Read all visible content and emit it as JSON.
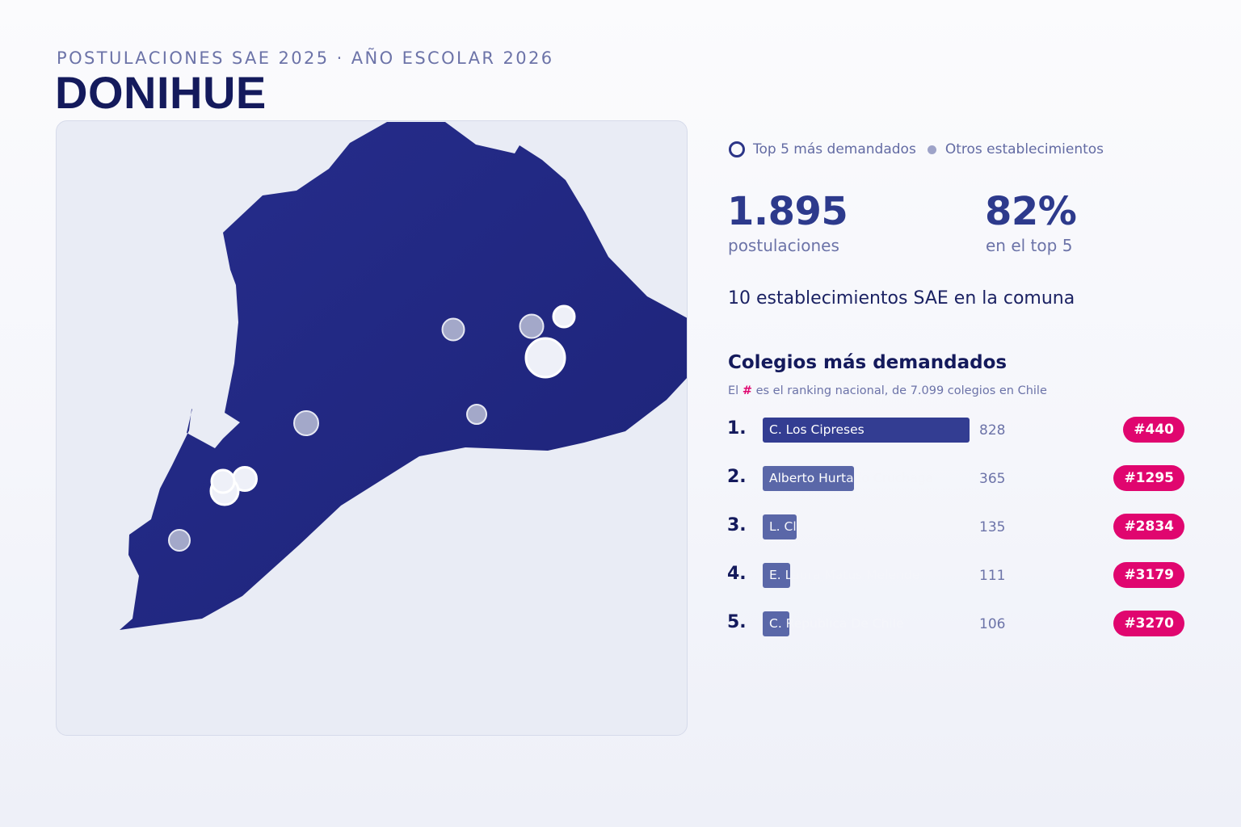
{
  "header": {
    "subtitle": "POSTULACIONES SAE 2025 · AÑO ESCOLAR 2026",
    "title": "DONIHUE"
  },
  "legend": {
    "top5_label": "Top 5 más demandados",
    "others_label": "Otros establecimientos"
  },
  "stats": {
    "applications_value": "1.895",
    "applications_label": "postulaciones",
    "top5_share_value": "82%",
    "top5_share_label": "en el top 5",
    "schools_count_text": "10 establecimientos SAE en la comuna"
  },
  "ranking": {
    "title": "Colegios más demandados",
    "note_prefix": "El ",
    "note_hash": "#",
    "note_suffix": " es el ranking nacional, de 7.099 colegios en Chile",
    "max_value": 828,
    "items": [
      {
        "rank": "1.",
        "name": "C. Los Cipreses",
        "value": 828,
        "national_rank": "#440"
      },
      {
        "rank": "2.",
        "name": "Alberto Hurtado Cruchaga",
        "value": 365,
        "national_rank": "#1295"
      },
      {
        "rank": "3.",
        "name": "L. Claudio Arrau Leon",
        "value": 135,
        "national_rank": "#2834"
      },
      {
        "rank": "4.",
        "name": "E. Laura Matus Melende",
        "value": 111,
        "national_rank": "#3179"
      },
      {
        "rank": "5.",
        "name": "C. Republica De Chile",
        "value": 106,
        "national_rank": "#3270"
      }
    ]
  },
  "colors": {
    "commune_fill": "#242a85",
    "top_bar": "#333d92",
    "other_bar": "#5a67a8",
    "badge": "#e0066f",
    "top5_marker": "#eef0f8",
    "other_marker": "#a3a8c9"
  }
}
